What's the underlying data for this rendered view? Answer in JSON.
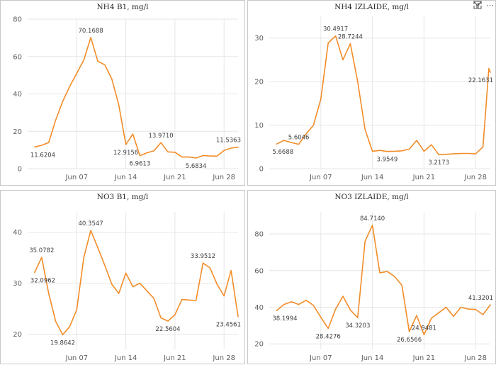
{
  "colors": {
    "line": "#f28c28",
    "grid": "#e6e6e6",
    "text": "#605e5c"
  },
  "toolbar": {
    "icons": [
      "filter-icon",
      "focus-mode-icon",
      "more-options-icon"
    ],
    "more_glyph": "⋯"
  },
  "chart_data": [
    {
      "type": "line",
      "title": "NH4 B1, mg/l",
      "xlabel": "",
      "ylabel": "",
      "xticks": [
        "Jun 07",
        "Jun 14",
        "Jun 21",
        "Jun 28"
      ],
      "xtick_positions": [
        7,
        14,
        21,
        28
      ],
      "yticks": [
        0,
        20,
        40,
        60,
        80
      ],
      "ylim": [
        0,
        80
      ],
      "xlim": [
        0,
        30
      ],
      "grid": true,
      "x": [
        1,
        2,
        3,
        4,
        5,
        6,
        7,
        8,
        9,
        10,
        11,
        12,
        13,
        14,
        15,
        16,
        17,
        18,
        19,
        20,
        21,
        22,
        23,
        24,
        25,
        26,
        27,
        28,
        29,
        30
      ],
      "values": [
        11.6204,
        12.5,
        14,
        26,
        36,
        44,
        51,
        58,
        70.1688,
        57.5,
        55.5,
        48,
        34,
        12.9156,
        18.5,
        6.9613,
        8.5,
        9.5,
        13.971,
        9,
        8.8,
        6.2,
        6.3,
        5.6834,
        7,
        6.8,
        6.7,
        9.8,
        11,
        11.5363
      ],
      "data_labels": [
        {
          "x": 1,
          "value": "11.6204",
          "pos": "below"
        },
        {
          "x": 9,
          "value": "70.1688",
          "pos": "above"
        },
        {
          "x": 14,
          "value": "12.9156",
          "pos": "below"
        },
        {
          "x": 16,
          "value": "6.9613",
          "pos": "below"
        },
        {
          "x": 19,
          "value": "13.9710",
          "pos": "above"
        },
        {
          "x": 24,
          "value": "5.6834",
          "pos": "below"
        },
        {
          "x": 30,
          "value": "11.5363",
          "pos": "above"
        }
      ]
    },
    {
      "type": "line",
      "title": "NH4 IZLAIDE, mg/l",
      "xlabel": "",
      "ylabel": "",
      "xticks": [
        "Jun 07",
        "Jun 14",
        "Jun 21",
        "Jun 28"
      ],
      "xtick_positions": [
        7,
        14,
        21,
        28
      ],
      "yticks": [
        0,
        10,
        20,
        30
      ],
      "ylim": [
        0,
        35
      ],
      "xlim": [
        0,
        30
      ],
      "grid": true,
      "x": [
        1,
        2,
        3,
        4,
        5,
        6,
        7,
        8,
        9,
        10,
        11,
        12,
        13,
        14,
        15,
        16,
        17,
        18,
        19,
        20,
        21,
        22,
        23,
        24,
        25,
        26,
        27,
        28,
        29,
        30
      ],
      "values": [
        5.6688,
        6.5,
        6,
        5.6046,
        8,
        10,
        16,
        28.9,
        30.4917,
        25,
        28.7244,
        20,
        9,
        4,
        4.2,
        3.9549,
        4,
        4.1,
        4.5,
        6.5,
        4,
        5.5,
        3.2173,
        3.3,
        3.4,
        3.5,
        3.5,
        3.4,
        5,
        22.1631
      ],
      "extra_points": [
        {
          "x": 29.8,
          "value": 23
        }
      ],
      "data_labels": [
        {
          "x": 1,
          "value": "5.6688",
          "pos": "below"
        },
        {
          "x": 4,
          "value": "5.6046",
          "pos": "above"
        },
        {
          "x": 9,
          "value": "30.4917",
          "pos": "above"
        },
        {
          "x": 11,
          "value": "28.7244",
          "pos": "above"
        },
        {
          "x": 16,
          "value": "3.9549",
          "pos": "below"
        },
        {
          "x": 23,
          "value": "3.2173",
          "pos": "below"
        },
        {
          "x": 30,
          "value": "22.1631",
          "pos": "below"
        }
      ]
    },
    {
      "type": "line",
      "title": "NO3 B1, mg/l",
      "xlabel": "",
      "ylabel": "",
      "xticks": [
        "Jun 07",
        "Jun 14",
        "Jun 21",
        "Jun 28"
      ],
      "xtick_positions": [
        7,
        14,
        21,
        28
      ],
      "yticks": [
        20,
        30,
        40
      ],
      "ylim": [
        17,
        44
      ],
      "xlim": [
        0,
        30
      ],
      "grid": true,
      "x": [
        1,
        2,
        3,
        4,
        5,
        6,
        7,
        8,
        9,
        10,
        11,
        12,
        13,
        14,
        15,
        16,
        17,
        18,
        19,
        20,
        21,
        22,
        23,
        24,
        25,
        26,
        27,
        28,
        29,
        30
      ],
      "values": [
        32.0962,
        35.0782,
        28,
        22.5,
        19.8642,
        21.5,
        24.8,
        35,
        40.3547,
        37,
        33.5,
        29.8,
        28,
        32,
        29.3,
        30,
        28.5,
        27,
        23.2,
        22.5604,
        23.8,
        26.8,
        26.7,
        26.6,
        33.9512,
        33,
        29.8,
        27.5,
        32.5,
        23.4561
      ],
      "data_labels": [
        {
          "x": 1,
          "value": "32.0962",
          "pos": "below"
        },
        {
          "x": 2,
          "value": "35.0782",
          "pos": "above"
        },
        {
          "x": 5,
          "value": "19.8642",
          "pos": "below"
        },
        {
          "x": 9,
          "value": "40.3547",
          "pos": "above"
        },
        {
          "x": 20,
          "value": "22.5604",
          "pos": "below"
        },
        {
          "x": 25,
          "value": "33.9512",
          "pos": "above"
        },
        {
          "x": 30,
          "value": "23.4561",
          "pos": "below"
        }
      ]
    },
    {
      "type": "line",
      "title": "NO3 IZLAIDE, mg/l",
      "xlabel": "",
      "ylabel": "",
      "xticks": [
        "Jun 07",
        "Jun 14",
        "Jun 21",
        "Jun 28"
      ],
      "xtick_positions": [
        7,
        14,
        21,
        28
      ],
      "yticks": [
        20,
        40,
        60,
        80
      ],
      "ylim": [
        17,
        92
      ],
      "xlim": [
        0,
        30
      ],
      "grid": true,
      "x": [
        1,
        2,
        3,
        4,
        5,
        6,
        7,
        8,
        9,
        10,
        11,
        12,
        13,
        14,
        15,
        16,
        17,
        18,
        19,
        20,
        21,
        22,
        23,
        24,
        25,
        26,
        27,
        28,
        29,
        30
      ],
      "values": [
        38.1994,
        41.5,
        43,
        41.5,
        43.8,
        41,
        34.5,
        28.4276,
        39,
        46,
        38.5,
        34.3203,
        76,
        84.714,
        58.8,
        59.5,
        56.8,
        52,
        26.6566,
        35.5,
        24.9481,
        34,
        37,
        40,
        35,
        40,
        39,
        38.8,
        36,
        41.3201
      ],
      "data_labels": [
        {
          "x": 1,
          "value": "38.1994",
          "pos": "below"
        },
        {
          "x": 8,
          "value": "28.4276",
          "pos": "below"
        },
        {
          "x": 12,
          "value": "34.3203",
          "pos": "below"
        },
        {
          "x": 14,
          "value": "84.7140",
          "pos": "above"
        },
        {
          "x": 19,
          "value": "26.6566",
          "pos": "below"
        },
        {
          "x": 21,
          "value": "24.9481",
          "pos": "above"
        },
        {
          "x": 30,
          "value": "41.3201",
          "pos": "above"
        }
      ]
    }
  ]
}
